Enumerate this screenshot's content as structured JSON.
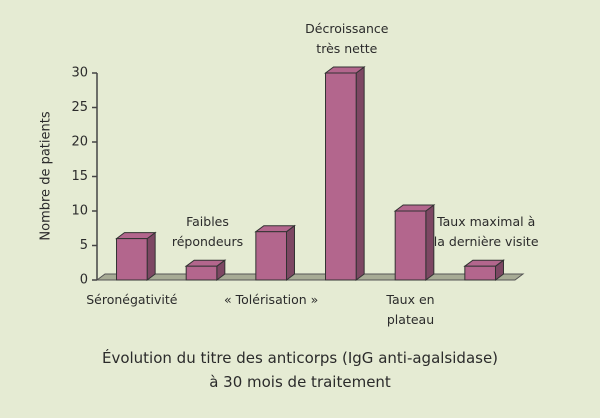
{
  "chart_data": {
    "type": "bar",
    "categories": [
      "Séronégativité",
      "Faibles\nrépondeurs",
      "« Tolérisation »",
      "Décroissance\ntrès nette",
      "Taux en\nplateau",
      "Taux maximal à\nla dernière visite"
    ],
    "values": [
      6,
      2,
      7,
      30,
      10,
      2
    ],
    "color": "#b3668d",
    "ylim": [
      0,
      30
    ],
    "yticks": [
      0,
      5,
      10,
      15,
      20,
      25,
      30
    ],
    "y_label": "Nombre de patients",
    "x_label": "Évolution du titre des anticorps (IgG anti-agalsidase)\nà 30 mois de traitement"
  }
}
